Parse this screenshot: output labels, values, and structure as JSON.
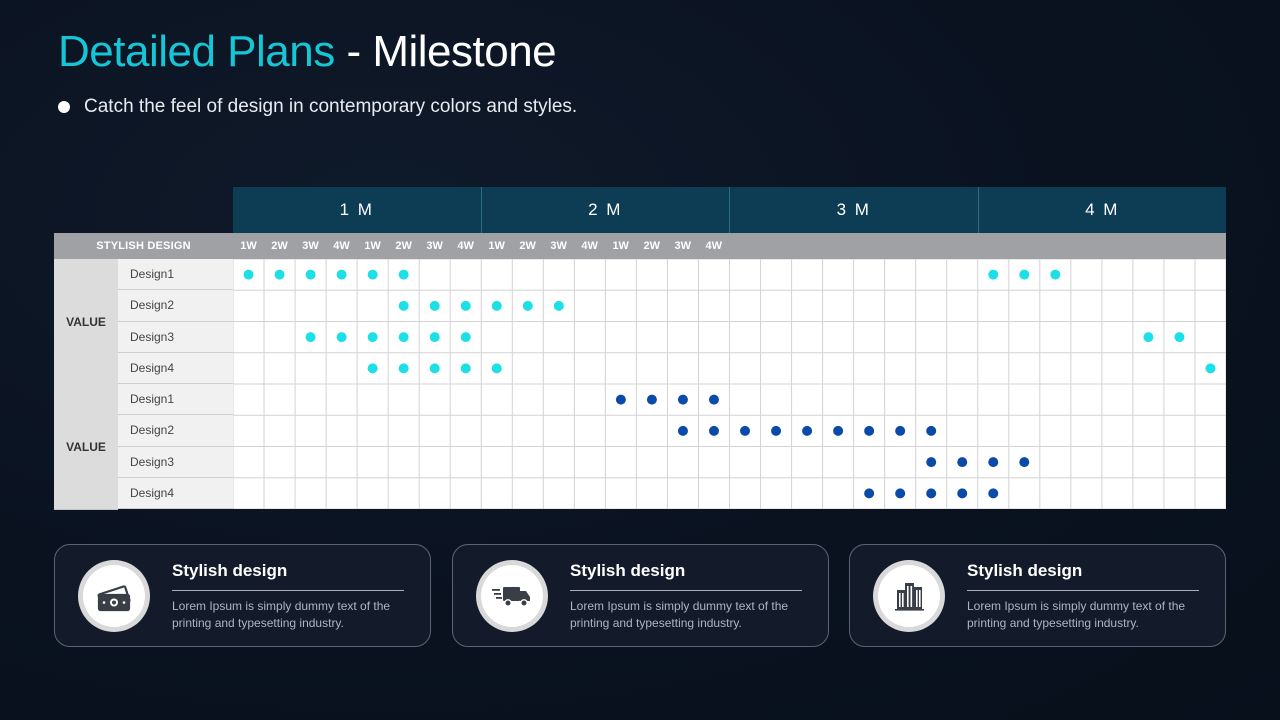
{
  "header": {
    "title_highlight": "Detailed Plans",
    "title_rest": " - Milestone",
    "subtitle": "Catch the feel of design in contemporary colors and styles."
  },
  "colors": {
    "accent": "#17c6d6",
    "month_header": "#0c3d55",
    "dot_cyan": "#1de0e6",
    "dot_blue": "#0b4aa8"
  },
  "table": {
    "months": [
      "1 M",
      "2 M",
      "3 M",
      "4 M"
    ],
    "weeks": [
      "1W",
      "2W",
      "3W",
      "4W",
      "1W",
      "2W",
      "3W",
      "4W",
      "1W",
      "2W",
      "3W",
      "4W",
      "1W",
      "2W",
      "3W",
      "4W"
    ],
    "corner_label": "STYLISH DESIGN",
    "groups": [
      {
        "label": "VALUE",
        "dot_color": "cyan",
        "rows": [
          {
            "name": "Design1",
            "dots": [
              0,
              1,
              2,
              3,
              4,
              5,
              24,
              25,
              26
            ]
          },
          {
            "name": "Design2",
            "dots": [
              5,
              6,
              7,
              8,
              9,
              10
            ]
          },
          {
            "name": "Design3",
            "dots": [
              2,
              3,
              4,
              5,
              6,
              7,
              29,
              30
            ]
          },
          {
            "name": "Design4",
            "dots": [
              4,
              5,
              6,
              7,
              8,
              31
            ]
          }
        ]
      },
      {
        "label": "VALUE",
        "dot_color": "blue",
        "rows": [
          {
            "name": "Design1",
            "dots": [
              12,
              13,
              14,
              15
            ]
          },
          {
            "name": "Design2",
            "dots": [
              14,
              15,
              16,
              17,
              18,
              19,
              20,
              21,
              22
            ]
          },
          {
            "name": "Design3",
            "dots": [
              22,
              23,
              24,
              25
            ]
          },
          {
            "name": "Design4",
            "dots": [
              20,
              21,
              22,
              23,
              24
            ]
          }
        ]
      }
    ]
  },
  "cards": [
    {
      "title": "Stylish design",
      "text": "Lorem Ipsum  is simply dummy text of the printing and typesetting industry.",
      "icon": "money-icon"
    },
    {
      "title": "Stylish design",
      "text": "Lorem Ipsum  is simply dummy text of the printing and typesetting industry.",
      "icon": "delivery-truck-icon"
    },
    {
      "title": "Stylish design",
      "text": "Lorem Ipsum  is simply dummy text of the printing and typesetting industry.",
      "icon": "buildings-icon"
    }
  ]
}
